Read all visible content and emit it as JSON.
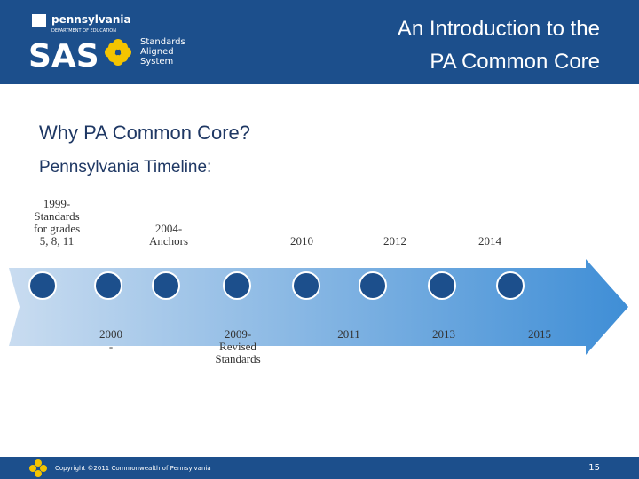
{
  "header": {
    "logo_state": "pennsylvania",
    "logo_dept": "DEPARTMENT OF EDUCATION",
    "logo_mark": "SAS",
    "logo_lines": [
      "Standards",
      "Aligned",
      "System"
    ],
    "title_lines": [
      "An Introduction to the",
      "PA Common Core"
    ]
  },
  "body": {
    "heading": "Why PA Common Core?",
    "subheading": "Pennsylvania Timeline:"
  },
  "timeline": {
    "above": [
      [
        "1999-",
        "Standards",
        "for grades",
        "5, 8, 11"
      ],
      [
        "2004-",
        "Anchors"
      ],
      [
        "2010"
      ],
      [
        "2012"
      ],
      [
        "2014"
      ]
    ],
    "below": [
      [
        "2000",
        "-"
      ],
      [
        "2009-",
        "Revised",
        "Standards"
      ],
      [
        "2011"
      ],
      [
        "2013"
      ],
      [
        "2015"
      ]
    ]
  },
  "footer": {
    "copyright": "Copyright ©2011 Commonwealth of Pennsylvania",
    "page": "15"
  }
}
